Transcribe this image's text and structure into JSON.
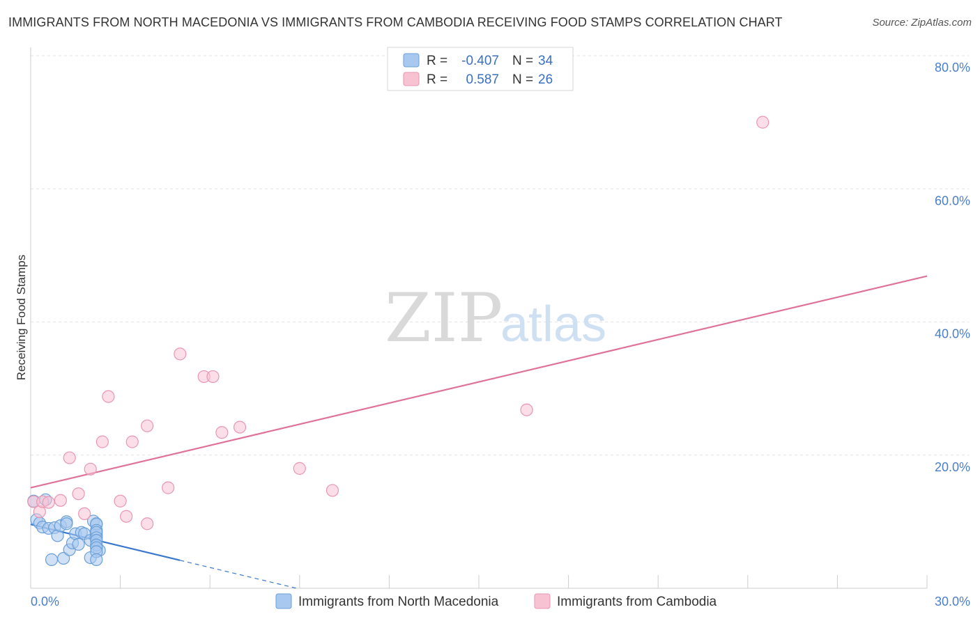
{
  "title": "IMMIGRANTS FROM NORTH MACEDONIA VS IMMIGRANTS FROM CAMBODIA RECEIVING FOOD STAMPS CORRELATION CHART",
  "source": "Source: ZipAtlas.com",
  "watermark": {
    "zip": "ZIP",
    "atlas": "atlas"
  },
  "stats": [
    {
      "r_label": "R =",
      "r_value": "-0.407",
      "n_label": "N =",
      "n_value": "34",
      "color": "#a9c8ef",
      "stroke": "#6a9fd8"
    },
    {
      "r_label": "R =",
      "r_value": "0.587",
      "n_label": "N =",
      "n_value": "26",
      "color": "#f7c3d3",
      "stroke": "#e996b1"
    }
  ],
  "chart_data": {
    "type": "scatter",
    "title": "IMMIGRANTS FROM NORTH MACEDONIA VS IMMIGRANTS FROM CAMBODIA RECEIVING FOOD STAMPS CORRELATION CHART",
    "xlabel": "",
    "ylabel": "Receiving Food Stamps",
    "xlim": [
      0,
      30
    ],
    "ylim": [
      0,
      80
    ],
    "x_tick_labels": [
      {
        "value": 0,
        "label": "0.0%"
      },
      {
        "value": 30,
        "label": "30.0%"
      }
    ],
    "y_tick_labels": [
      {
        "value": 20,
        "label": "20.0%"
      },
      {
        "value": 40,
        "label": "40.0%"
      },
      {
        "value": 60,
        "label": "60.0%"
      },
      {
        "value": 80,
        "label": "80.0%"
      }
    ],
    "grid": true,
    "legend": "bottom",
    "series": [
      {
        "name": "Immigrants from North Macedonia",
        "color": "#a9c8ef",
        "stroke": "#6a9fd8",
        "line_color": "#3a78d0",
        "points": [
          [
            0.1,
            13.1
          ],
          [
            0.2,
            10.3
          ],
          [
            0.3,
            9.8
          ],
          [
            0.4,
            9.2
          ],
          [
            0.5,
            13.3
          ],
          [
            0.6,
            9.0
          ],
          [
            0.7,
            4.3
          ],
          [
            0.8,
            9.1
          ],
          [
            0.9,
            7.9
          ],
          [
            1.0,
            9.4
          ],
          [
            1.1,
            4.5
          ],
          [
            1.2,
            10.0
          ],
          [
            1.2,
            9.7
          ],
          [
            1.3,
            5.8
          ],
          [
            1.4,
            6.8
          ],
          [
            1.5,
            8.2
          ],
          [
            1.6,
            6.6
          ],
          [
            1.7,
            8.4
          ],
          [
            1.8,
            8.2
          ],
          [
            2.0,
            7.2
          ],
          [
            2.0,
            4.6
          ],
          [
            2.1,
            10.1
          ],
          [
            2.2,
            8.0
          ],
          [
            2.3,
            5.7
          ],
          [
            2.2,
            9.6
          ],
          [
            2.2,
            9.7
          ],
          [
            2.2,
            8.7
          ],
          [
            2.2,
            8.4
          ],
          [
            2.2,
            7.6
          ],
          [
            2.2,
            7.2
          ],
          [
            2.2,
            6.5
          ],
          [
            2.2,
            6.1
          ],
          [
            2.2,
            5.5
          ],
          [
            2.2,
            4.3
          ]
        ],
        "trend": {
          "x": [
            0,
            5.0
          ],
          "y": [
            9.6,
            4.2
          ]
        },
        "trend_extension": {
          "x": [
            5.0,
            8.9
          ],
          "y": [
            4.2,
            0
          ]
        }
      },
      {
        "name": "Immigrants from Cambodia",
        "color": "#f7c3d3",
        "stroke": "#e996b1",
        "line_color": "#e0729a",
        "points": [
          [
            0.1,
            13.0
          ],
          [
            0.3,
            11.5
          ],
          [
            0.4,
            13.0
          ],
          [
            0.6,
            12.9
          ],
          [
            1.0,
            13.2
          ],
          [
            1.3,
            19.6
          ],
          [
            1.6,
            14.2
          ],
          [
            1.8,
            11.2
          ],
          [
            2.0,
            17.9
          ],
          [
            2.4,
            22.0
          ],
          [
            2.6,
            28.8
          ],
          [
            3.0,
            13.1
          ],
          [
            3.2,
            10.8
          ],
          [
            3.4,
            22.0
          ],
          [
            3.9,
            24.4
          ],
          [
            3.9,
            9.7
          ],
          [
            4.6,
            15.1
          ],
          [
            5.0,
            35.2
          ],
          [
            5.8,
            31.8
          ],
          [
            6.1,
            31.8
          ],
          [
            6.4,
            23.4
          ],
          [
            7.0,
            24.2
          ],
          [
            9.0,
            18.0
          ],
          [
            10.1,
            14.7
          ],
          [
            16.6,
            26.8
          ],
          [
            24.5,
            70.0
          ]
        ],
        "trend": {
          "x": [
            0,
            30
          ],
          "y": [
            15.1,
            46.9
          ]
        }
      }
    ]
  }
}
